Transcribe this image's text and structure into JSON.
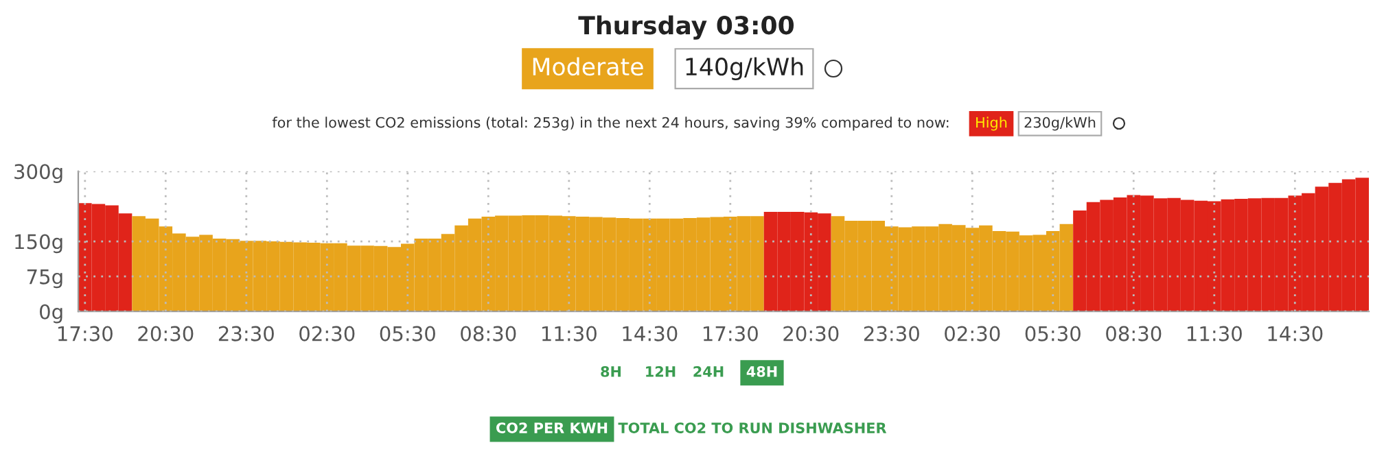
{
  "chart_data": {
    "type": "bar",
    "title": "Thursday 03:00",
    "subtitle": "for the lowest CO2 emissions (total: 253g) in the next 24 hours, saving 39% compared to now:",
    "annotations": [
      "Moderate",
      "140g/kWh",
      "High",
      "230g/kWh",
      "8H",
      "12H",
      "24H",
      "48H",
      "CO2 PER KWH",
      "TOTAL CO2 TO RUN DISHWASHER"
    ],
    "categories": [
      "17:30",
      null,
      null,
      null,
      null,
      null,
      "20:30",
      null,
      null,
      null,
      null,
      null,
      "23:30",
      null,
      null,
      null,
      null,
      null,
      "02:30",
      null,
      null,
      null,
      null,
      null,
      "05:30",
      null,
      null,
      null,
      null,
      null,
      "08:30",
      null,
      null,
      null,
      null,
      null,
      "11:30",
      null,
      null,
      null,
      null,
      null,
      "14:30",
      null,
      null,
      null,
      null,
      null,
      "17:30",
      null,
      null,
      null,
      null,
      null,
      "20:30",
      null,
      null,
      null,
      null,
      null,
      "23:30",
      null,
      null,
      null,
      null,
      null,
      "02:30",
      null,
      null,
      null,
      null,
      null,
      "05:30",
      null,
      null,
      null,
      null,
      null,
      "08:30",
      null,
      null,
      null,
      null,
      null,
      "11:30",
      null,
      null,
      null,
      null,
      null,
      "14:30",
      null,
      null,
      null,
      null,
      null
    ],
    "values": [
      232,
      230,
      227,
      210,
      204,
      199,
      182,
      167,
      160,
      164,
      156,
      155,
      151,
      151,
      150,
      149,
      148,
      147,
      146,
      146,
      141,
      141,
      140,
      138,
      145,
      156,
      156,
      166,
      184,
      199,
      203,
      205,
      205,
      206,
      206,
      205,
      204,
      203,
      202,
      201,
      200,
      199,
      199,
      199,
      199,
      200,
      201,
      202,
      203,
      204,
      204,
      213,
      213,
      213,
      212,
      210,
      204,
      194,
      194,
      194,
      182,
      180,
      182,
      182,
      187,
      185,
      179,
      184,
      172,
      171,
      163,
      164,
      172,
      187,
      216,
      234,
      239,
      244,
      249,
      248,
      242,
      243,
      239,
      237,
      236,
      240,
      241,
      242,
      243,
      243,
      248,
      253,
      267,
      275,
      283,
      286
    ],
    "colors": [
      "#e0241a",
      "#e0241a",
      "#e0241a",
      "#e0241a",
      "#e8a41c",
      "#e8a41c",
      "#e8a41c",
      "#e8a41c",
      "#e8a41c",
      "#e8a41c",
      "#e8a41c",
      "#e8a41c",
      "#e8a41c",
      "#e8a41c",
      "#e8a41c",
      "#e8a41c",
      "#e8a41c",
      "#e8a41c",
      "#e8a41c",
      "#e8a41c",
      "#e8a41c",
      "#e8a41c",
      "#e8a41c",
      "#e8a41c",
      "#e8a41c",
      "#e8a41c",
      "#e8a41c",
      "#e8a41c",
      "#e8a41c",
      "#e8a41c",
      "#e8a41c",
      "#e8a41c",
      "#e8a41c",
      "#e8a41c",
      "#e8a41c",
      "#e8a41c",
      "#e8a41c",
      "#e8a41c",
      "#e8a41c",
      "#e8a41c",
      "#e8a41c",
      "#e8a41c",
      "#e8a41c",
      "#e8a41c",
      "#e8a41c",
      "#e8a41c",
      "#e8a41c",
      "#e8a41c",
      "#e8a41c",
      "#e8a41c",
      "#e8a41c",
      "#e0241a",
      "#e0241a",
      "#e0241a",
      "#e0241a",
      "#e0241a",
      "#e8a41c",
      "#e8a41c",
      "#e8a41c",
      "#e8a41c",
      "#e8a41c",
      "#e8a41c",
      "#e8a41c",
      "#e8a41c",
      "#e8a41c",
      "#e8a41c",
      "#e8a41c",
      "#e8a41c",
      "#e8a41c",
      "#e8a41c",
      "#e8a41c",
      "#e8a41c",
      "#e8a41c",
      "#e8a41c",
      "#e0241a",
      "#e0241a",
      "#e0241a",
      "#e0241a",
      "#e0241a",
      "#e0241a",
      "#e0241a",
      "#e0241a",
      "#e0241a",
      "#e0241a",
      "#e0241a",
      "#e0241a",
      "#e0241a",
      "#e0241a",
      "#e0241a",
      "#e0241a",
      "#e0241a",
      "#e0241a",
      "#e0241a",
      "#e0241a",
      "#e0241a",
      "#e0241a"
    ],
    "ylim": [
      0,
      300
    ],
    "yticks": [
      {
        "value": 0,
        "label": "0g"
      },
      {
        "value": 75,
        "label": "75g"
      },
      {
        "value": 150,
        "label": "150g"
      },
      {
        "value": 300,
        "label": "300g"
      }
    ],
    "grid": true
  }
}
